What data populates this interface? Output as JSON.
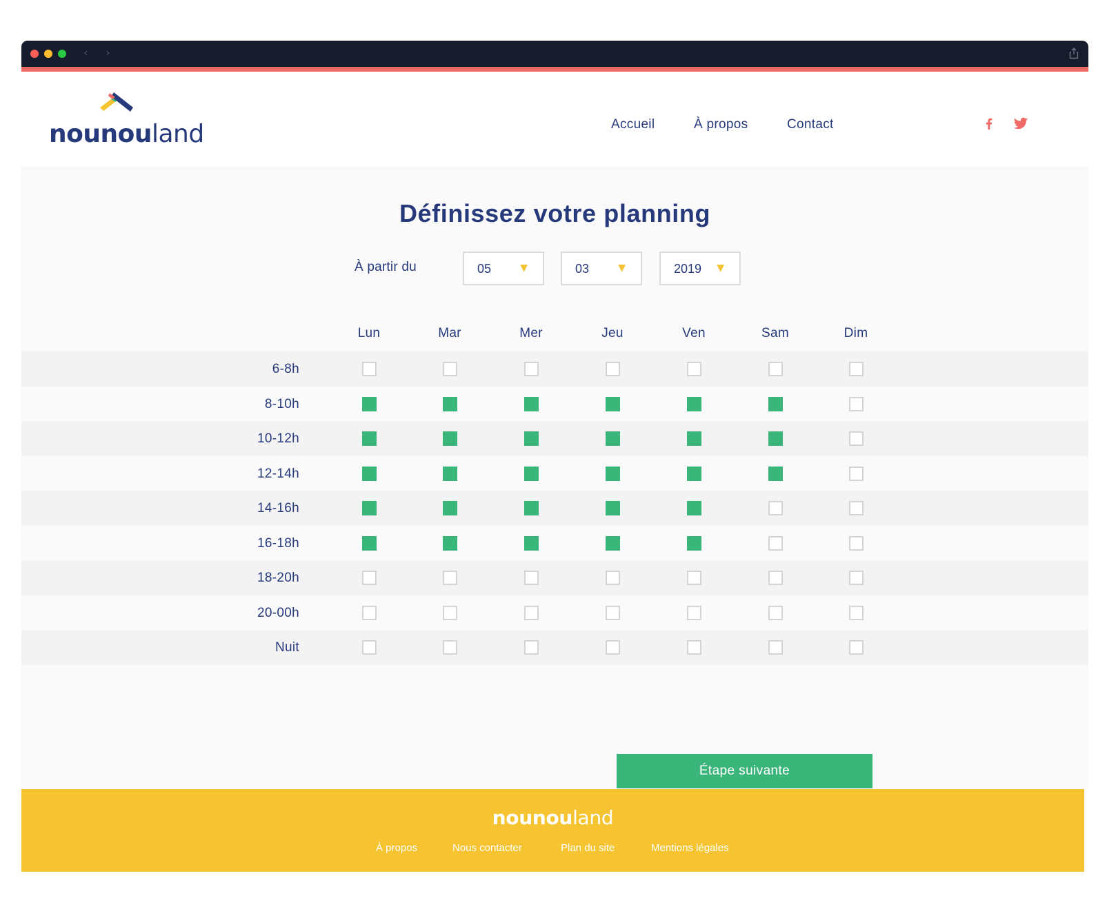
{
  "browser": {
    "back_icon": "chevron-left-icon",
    "forward_icon": "chevron-right-icon",
    "share_icon": "share-icon"
  },
  "brand": {
    "name_bold": "nounou",
    "name_light": "land",
    "colors": {
      "navy": "#26397a",
      "green": "#3bb67b",
      "yellow": "#f6c431",
      "coral": "#ef6a64"
    }
  },
  "nav": {
    "items": [
      "Accueil",
      "À propos",
      "Contact"
    ]
  },
  "social": {
    "facebook_icon": "facebook-icon",
    "twitter_icon": "twitter-icon"
  },
  "planner": {
    "title": "Définissez votre planning",
    "start_label": "À partir du",
    "date": {
      "day": "05",
      "month": "03",
      "year": "2019"
    },
    "days": [
      "Lun",
      "Mar",
      "Mer",
      "Jeu",
      "Ven",
      "Sam",
      "Dim"
    ],
    "slots": [
      {
        "label": "6-8h",
        "checked": [
          false,
          false,
          false,
          false,
          false,
          false,
          false
        ]
      },
      {
        "label": "8-10h",
        "checked": [
          true,
          true,
          true,
          true,
          true,
          true,
          false
        ]
      },
      {
        "label": "10-12h",
        "checked": [
          true,
          true,
          true,
          true,
          true,
          true,
          false
        ]
      },
      {
        "label": "12-14h",
        "checked": [
          true,
          true,
          true,
          true,
          true,
          true,
          false
        ]
      },
      {
        "label": "14-16h",
        "checked": [
          true,
          true,
          true,
          true,
          true,
          false,
          false
        ]
      },
      {
        "label": "16-18h",
        "checked": [
          true,
          true,
          true,
          true,
          true,
          false,
          false
        ]
      },
      {
        "label": "18-20h",
        "checked": [
          false,
          false,
          false,
          false,
          false,
          false,
          false
        ]
      },
      {
        "label": "20-00h",
        "checked": [
          false,
          false,
          false,
          false,
          false,
          false,
          false
        ]
      },
      {
        "label": "Nuit",
        "checked": [
          false,
          false,
          false,
          false,
          false,
          false,
          false
        ]
      }
    ],
    "next_label": "Étape suivante"
  },
  "footer": {
    "brand_bold": "nounou",
    "brand_light": "land",
    "links": [
      "À propos",
      "Nous contacter",
      "Plan du site",
      "Mentions légales"
    ]
  }
}
